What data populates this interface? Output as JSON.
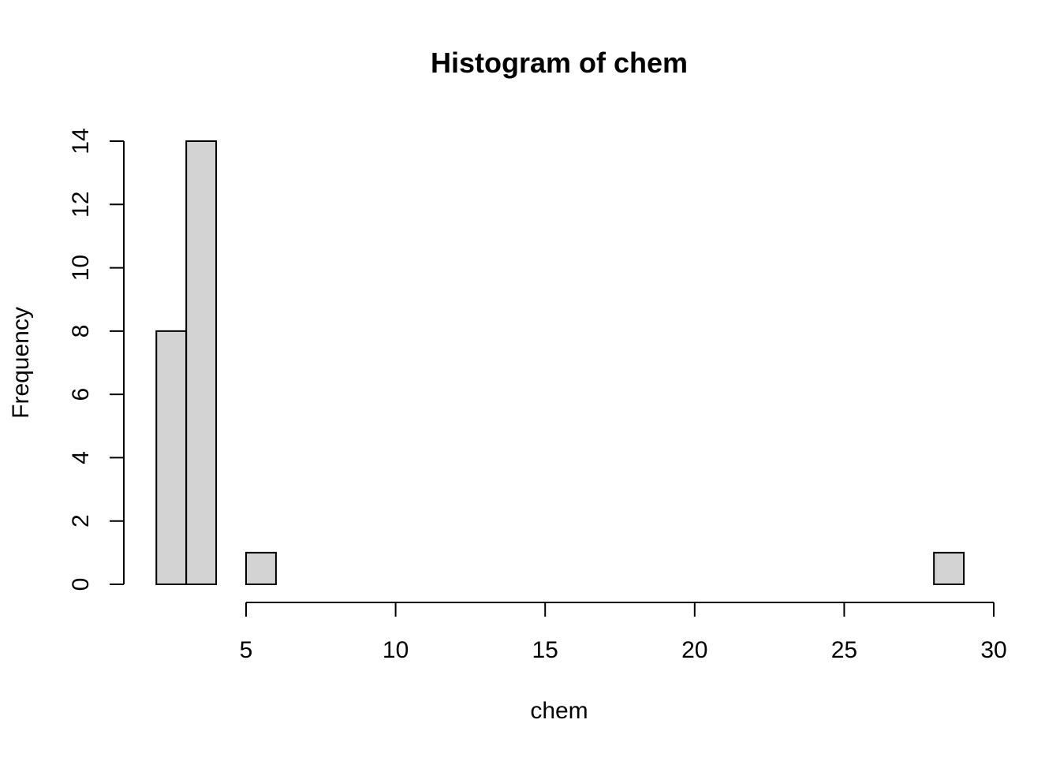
{
  "chart_data": {
    "type": "bar",
    "title": "Histogram of chem",
    "xlabel": "chem",
    "ylabel": "Frequency",
    "bins": [
      {
        "start": 2,
        "end": 3,
        "count": 8
      },
      {
        "start": 3,
        "end": 4,
        "count": 14
      },
      {
        "start": 4,
        "end": 5,
        "count": 0
      },
      {
        "start": 5,
        "end": 6,
        "count": 1
      },
      {
        "start": 6,
        "end": 7,
        "count": 0
      },
      {
        "start": 7,
        "end": 8,
        "count": 0
      },
      {
        "start": 8,
        "end": 9,
        "count": 0
      },
      {
        "start": 9,
        "end": 10,
        "count": 0
      },
      {
        "start": 10,
        "end": 11,
        "count": 0
      },
      {
        "start": 11,
        "end": 12,
        "count": 0
      },
      {
        "start": 12,
        "end": 13,
        "count": 0
      },
      {
        "start": 13,
        "end": 14,
        "count": 0
      },
      {
        "start": 14,
        "end": 15,
        "count": 0
      },
      {
        "start": 15,
        "end": 16,
        "count": 0
      },
      {
        "start": 16,
        "end": 17,
        "count": 0
      },
      {
        "start": 17,
        "end": 18,
        "count": 0
      },
      {
        "start": 18,
        "end": 19,
        "count": 0
      },
      {
        "start": 19,
        "end": 20,
        "count": 0
      },
      {
        "start": 20,
        "end": 21,
        "count": 0
      },
      {
        "start": 21,
        "end": 22,
        "count": 0
      },
      {
        "start": 22,
        "end": 23,
        "count": 0
      },
      {
        "start": 23,
        "end": 24,
        "count": 0
      },
      {
        "start": 24,
        "end": 25,
        "count": 0
      },
      {
        "start": 25,
        "end": 26,
        "count": 0
      },
      {
        "start": 26,
        "end": 27,
        "count": 0
      },
      {
        "start": 27,
        "end": 28,
        "count": 0
      },
      {
        "start": 28,
        "end": 29,
        "count": 1
      }
    ],
    "xticks": [
      5,
      10,
      15,
      20,
      25,
      30
    ],
    "yticks": [
      0,
      2,
      4,
      6,
      8,
      10,
      12,
      14
    ],
    "xlim": [
      2,
      30
    ],
    "ylim": [
      0,
      14
    ],
    "grid": false,
    "bar_fill": "#d3d3d3",
    "bar_stroke": "#000000"
  }
}
